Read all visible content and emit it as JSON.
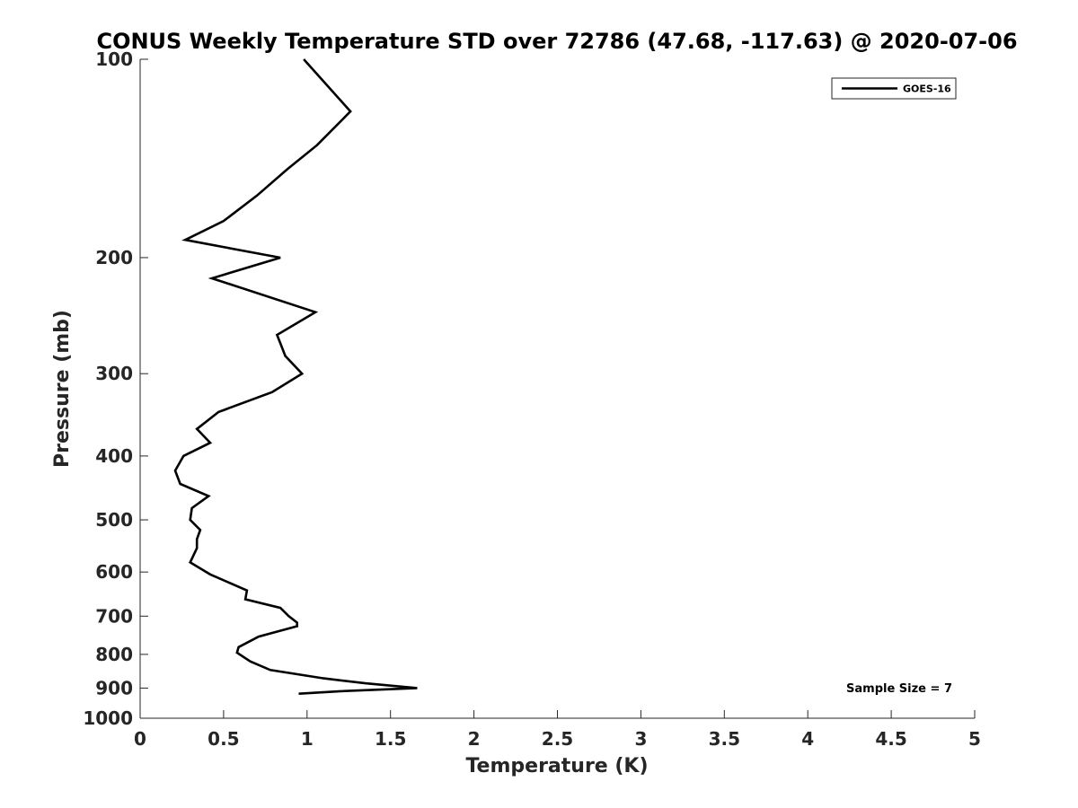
{
  "chart_data": {
    "type": "line",
    "title": "CONUS Weekly Temperature STD over 72786 (47.68, -117.63) @ 2020-07-06",
    "xlabel": "Temperature (K)",
    "ylabel": "Pressure (mb)",
    "xlim": [
      0,
      5
    ],
    "ylim": [
      100,
      1000
    ],
    "yscale": "log",
    "y_reversed": true,
    "x_ticks": [
      "0",
      "0.5",
      "1",
      "1.5",
      "2",
      "2.5",
      "3",
      "3.5",
      "4",
      "4.5",
      "5"
    ],
    "y_ticks": [
      "100",
      "200",
      "300",
      "400",
      "500",
      "600",
      "700",
      "800",
      "900",
      "1000"
    ],
    "grid": false,
    "legend_position": "top-right",
    "annotation": "Sample Size = 7",
    "series": [
      {
        "name": "GOES-16",
        "color": "#000000",
        "points": [
          [
            0.98,
            100
          ],
          [
            1.26,
            120
          ],
          [
            1.06,
            135
          ],
          [
            0.88,
            147
          ],
          [
            0.7,
            161
          ],
          [
            0.5,
            176
          ],
          [
            0.27,
            188
          ],
          [
            0.84,
            200
          ],
          [
            0.43,
            215
          ],
          [
            1.05,
            242
          ],
          [
            0.82,
            262
          ],
          [
            0.87,
            282
          ],
          [
            0.97,
            300
          ],
          [
            0.79,
            320
          ],
          [
            0.47,
            343
          ],
          [
            0.34,
            364
          ],
          [
            0.42,
            382
          ],
          [
            0.26,
            400
          ],
          [
            0.21,
            421
          ],
          [
            0.24,
            441
          ],
          [
            0.41,
            460
          ],
          [
            0.31,
            480
          ],
          [
            0.3,
            500
          ],
          [
            0.36,
            518
          ],
          [
            0.34,
            535
          ],
          [
            0.34,
            552
          ],
          [
            0.3,
            580
          ],
          [
            0.42,
            605
          ],
          [
            0.64,
            640
          ],
          [
            0.63,
            660
          ],
          [
            0.84,
            680
          ],
          [
            0.89,
            700
          ],
          [
            0.94,
            716
          ],
          [
            0.94,
            725
          ],
          [
            0.71,
            752
          ],
          [
            0.59,
            780
          ],
          [
            0.58,
            795
          ],
          [
            0.66,
            820
          ],
          [
            0.78,
            845
          ],
          [
            1.1,
            870
          ],
          [
            1.35,
            885
          ],
          [
            1.66,
            900
          ],
          [
            1.2,
            910
          ],
          [
            0.95,
            918
          ]
        ]
      }
    ]
  }
}
